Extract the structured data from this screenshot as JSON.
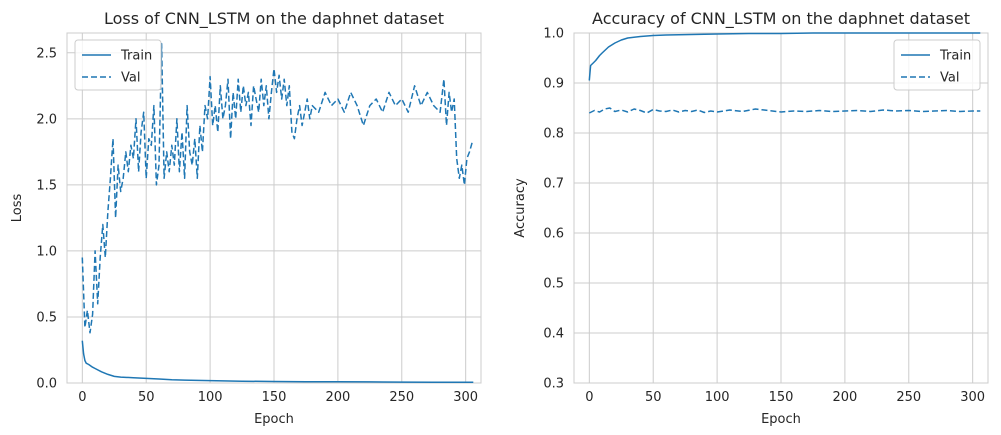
{
  "chart_data": [
    {
      "type": "line",
      "title": "Loss of CNN_LSTM on the daphnet dataset",
      "xlabel": "Epoch",
      "ylabel": "Loss",
      "xlim": [
        -12,
        312
      ],
      "ylim": [
        0,
        2.65
      ],
      "xticks": [
        0,
        50,
        100,
        150,
        200,
        250,
        300
      ],
      "yticks": [
        0.0,
        0.5,
        1.0,
        1.5,
        2.0,
        2.5
      ],
      "xtick_labels": [
        "0",
        "50",
        "100",
        "150",
        "200",
        "250",
        "300"
      ],
      "ytick_labels": [
        "0.0",
        "0.5",
        "1.0",
        "1.5",
        "2.0",
        "2.5"
      ],
      "grid": true,
      "legend": "upper-left",
      "color": "#1f77b4",
      "series": [
        {
          "name": "Train",
          "style": "solid",
          "x": [
            0,
            1,
            2,
            3,
            5,
            8,
            10,
            15,
            20,
            25,
            30,
            40,
            50,
            60,
            70,
            80,
            90,
            100,
            125,
            150,
            175,
            200,
            225,
            250,
            275,
            306
          ],
          "y": [
            0.32,
            0.22,
            0.17,
            0.15,
            0.14,
            0.12,
            0.11,
            0.085,
            0.065,
            0.05,
            0.045,
            0.04,
            0.035,
            0.03,
            0.025,
            0.022,
            0.02,
            0.018,
            0.014,
            0.011,
            0.01,
            0.009,
            0.008,
            0.007,
            0.006,
            0.006
          ]
        },
        {
          "name": "Val",
          "style": "dashed",
          "x": [
            0,
            2,
            4,
            6,
            8,
            10,
            12,
            14,
            16,
            18,
            20,
            22,
            24,
            26,
            28,
            30,
            32,
            34,
            36,
            38,
            40,
            42,
            44,
            46,
            48,
            50,
            52,
            54,
            56,
            58,
            60,
            62,
            64,
            66,
            68,
            70,
            72,
            74,
            76,
            78,
            80,
            82,
            84,
            86,
            88,
            90,
            92,
            94,
            96,
            98,
            100,
            102,
            104,
            106,
            108,
            110,
            112,
            114,
            116,
            118,
            120,
            122,
            124,
            126,
            128,
            130,
            132,
            134,
            136,
            138,
            140,
            142,
            144,
            146,
            148,
            150,
            152,
            154,
            156,
            158,
            160,
            162,
            164,
            166,
            168,
            170,
            172,
            174,
            176,
            178,
            180,
            185,
            190,
            195,
            200,
            205,
            210,
            215,
            220,
            225,
            230,
            235,
            240,
            245,
            250,
            255,
            260,
            265,
            270,
            275,
            280,
            283,
            285,
            287,
            289,
            291,
            293,
            295,
            297,
            299,
            301,
            303,
            305
          ],
          "y": [
            0.95,
            0.42,
            0.55,
            0.38,
            0.52,
            1.0,
            0.6,
            0.95,
            1.2,
            0.95,
            1.3,
            1.55,
            1.85,
            1.25,
            1.65,
            1.45,
            1.55,
            1.75,
            1.6,
            1.8,
            1.7,
            2.0,
            1.6,
            1.9,
            2.05,
            1.55,
            1.85,
            1.8,
            2.1,
            1.5,
            1.65,
            2.57,
            1.55,
            1.75,
            1.6,
            1.8,
            1.65,
            2.0,
            1.6,
            1.9,
            1.55,
            2.1,
            1.75,
            1.65,
            1.85,
            1.55,
            1.95,
            1.75,
            2.1,
            2.0,
            2.32,
            1.95,
            2.1,
            1.9,
            2.25,
            2.0,
            2.1,
            2.3,
            1.85,
            2.2,
            2.0,
            2.3,
            2.05,
            2.25,
            2.1,
            2.2,
            1.95,
            2.25,
            2.15,
            2.05,
            2.3,
            2.1,
            2.25,
            2.0,
            2.2,
            2.38,
            2.2,
            2.33,
            2.15,
            2.3,
            2.1,
            2.25,
            1.9,
            1.85,
            2.0,
            2.1,
            1.95,
            2.05,
            2.15,
            2.0,
            2.1,
            2.05,
            2.2,
            2.1,
            2.15,
            2.05,
            2.2,
            2.1,
            1.95,
            2.1,
            2.15,
            2.05,
            2.2,
            2.1,
            2.15,
            2.05,
            2.25,
            2.1,
            2.2,
            2.1,
            2.05,
            2.3,
            1.95,
            2.2,
            2.05,
            2.15,
            1.7,
            1.55,
            1.65,
            1.5,
            1.7,
            1.75,
            1.82
          ]
        }
      ]
    },
    {
      "type": "line",
      "title": "Accuracy of CNN_LSTM on the daphnet dataset",
      "xlabel": "Epoch",
      "ylabel": "Accuracy",
      "xlim": [
        -12,
        312
      ],
      "ylim": [
        0.3,
        1.0
      ],
      "xticks": [
        0,
        50,
        100,
        150,
        200,
        250,
        300
      ],
      "yticks": [
        0.3,
        0.4,
        0.5,
        0.6,
        0.7,
        0.8,
        0.9,
        1.0
      ],
      "xtick_labels": [
        "0",
        "50",
        "100",
        "150",
        "200",
        "250",
        "300"
      ],
      "ytick_labels": [
        "0.3",
        "0.4",
        "0.5",
        "0.6",
        "0.7",
        "0.8",
        "0.9",
        "1.0"
      ],
      "grid": true,
      "legend": "upper-right",
      "color": "#1f77b4",
      "series": [
        {
          "name": "Train",
          "style": "solid",
          "x": [
            0,
            1,
            3,
            5,
            8,
            10,
            15,
            20,
            25,
            30,
            40,
            50,
            60,
            80,
            100,
            125,
            150,
            175,
            200,
            250,
            306
          ],
          "y": [
            0.905,
            0.935,
            0.94,
            0.945,
            0.955,
            0.96,
            0.972,
            0.98,
            0.986,
            0.99,
            0.993,
            0.995,
            0.996,
            0.997,
            0.998,
            0.999,
            0.999,
            1.0,
            1.0,
            1.0,
            1.0
          ]
        },
        {
          "name": "Val",
          "style": "dashed",
          "x": [
            0,
            4,
            8,
            12,
            16,
            20,
            25,
            30,
            35,
            40,
            45,
            50,
            55,
            60,
            65,
            70,
            75,
            80,
            85,
            90,
            95,
            100,
            110,
            120,
            130,
            140,
            150,
            160,
            170,
            180,
            190,
            200,
            210,
            220,
            230,
            240,
            250,
            260,
            270,
            280,
            290,
            300,
            306
          ],
          "y": [
            0.84,
            0.845,
            0.842,
            0.848,
            0.85,
            0.843,
            0.846,
            0.842,
            0.848,
            0.845,
            0.84,
            0.847,
            0.844,
            0.843,
            0.846,
            0.842,
            0.845,
            0.843,
            0.846,
            0.841,
            0.844,
            0.842,
            0.846,
            0.843,
            0.848,
            0.845,
            0.842,
            0.844,
            0.843,
            0.845,
            0.843,
            0.844,
            0.845,
            0.843,
            0.846,
            0.844,
            0.845,
            0.843,
            0.844,
            0.845,
            0.843,
            0.844,
            0.844
          ]
        }
      ]
    }
  ]
}
